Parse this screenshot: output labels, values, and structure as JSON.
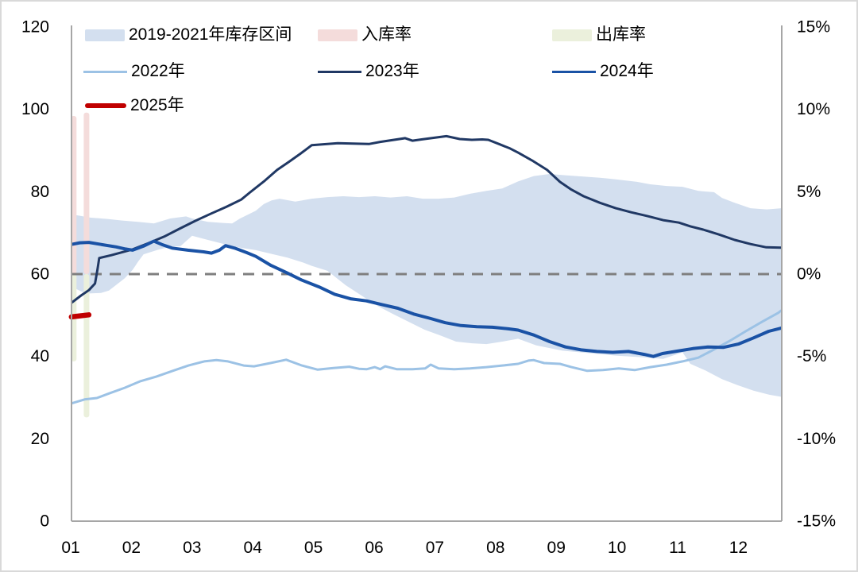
{
  "chart_data": {
    "type": "line",
    "title": "",
    "x_axis": {
      "labels": [
        "01",
        "02",
        "03",
        "04",
        "05",
        "06",
        "07",
        "08",
        "09",
        "10",
        "11",
        "12"
      ],
      "unit": "month"
    },
    "left_axis": {
      "ticks": [
        0,
        20,
        40,
        60,
        80,
        100,
        120
      ],
      "range": [
        0,
        120
      ]
    },
    "right_axis": {
      "tick_labels": [
        "15%",
        "10%",
        "5%",
        "0%",
        "-5%",
        "-10%",
        "-15%"
      ],
      "tick_values": [
        15,
        10,
        5,
        0,
        -5,
        -10,
        -15
      ],
      "range": [
        -15,
        15
      ]
    },
    "baseline": {
      "left_value": 60,
      "right_value_percent": 0,
      "style": "dashed",
      "color": "#7f7f7f"
    },
    "axis_line_color": "#a6a6a6",
    "series": [
      {
        "name": "2019-2021年库存区间",
        "type": "band",
        "axis": "left",
        "color": "#d3dfef",
        "upper": [
          [
            1.01,
            74.5
          ],
          [
            1.33,
            73.7
          ],
          [
            1.59,
            73.4
          ],
          [
            1.85,
            73.0
          ],
          [
            2.11,
            72.7
          ],
          [
            2.37,
            72.3
          ],
          [
            2.64,
            73.5
          ],
          [
            2.9,
            74.0
          ],
          [
            3.0,
            73.5
          ],
          [
            3.26,
            72.7
          ],
          [
            3.53,
            72.4
          ],
          [
            3.66,
            72.3
          ],
          [
            3.79,
            73.5
          ],
          [
            4.05,
            75.4
          ],
          [
            4.18,
            77.0
          ],
          [
            4.31,
            77.9
          ],
          [
            4.44,
            78.3
          ],
          [
            4.7,
            77.6
          ],
          [
            4.97,
            78.3
          ],
          [
            5.23,
            78.7
          ],
          [
            5.49,
            78.9
          ],
          [
            5.75,
            78.7
          ],
          [
            6.01,
            78.9
          ],
          [
            6.27,
            78.6
          ],
          [
            6.54,
            78.9
          ],
          [
            6.8,
            78.3
          ],
          [
            7.06,
            78.3
          ],
          [
            7.32,
            78.6
          ],
          [
            7.58,
            79.5
          ],
          [
            7.85,
            80.2
          ],
          [
            8.11,
            80.8
          ],
          [
            8.37,
            82.5
          ],
          [
            8.63,
            83.8
          ],
          [
            8.89,
            84.3
          ],
          [
            9.15,
            84.0
          ],
          [
            9.45,
            83.7
          ],
          [
            9.72,
            83.4
          ],
          [
            9.98,
            83.0
          ],
          [
            10.33,
            82.4
          ],
          [
            10.55,
            81.8
          ],
          [
            10.82,
            81.4
          ],
          [
            11.08,
            81.2
          ],
          [
            11.34,
            80.2
          ],
          [
            11.6,
            79.9
          ],
          [
            11.73,
            78.5
          ],
          [
            11.94,
            77.3
          ],
          [
            12.2,
            76.0
          ],
          [
            12.47,
            75.7
          ],
          [
            12.71,
            76.0
          ]
        ],
        "lower": [
          [
            1.01,
            57.0
          ],
          [
            1.17,
            55.8
          ],
          [
            1.3,
            55.3
          ],
          [
            1.5,
            55.4
          ],
          [
            1.63,
            56.0
          ],
          [
            1.76,
            57.5
          ],
          [
            1.89,
            59.0
          ],
          [
            2.02,
            61.0
          ],
          [
            2.11,
            63.0
          ],
          [
            2.2,
            64.8
          ],
          [
            2.33,
            65.4
          ],
          [
            2.46,
            66.0
          ],
          [
            2.64,
            66.6
          ],
          [
            2.81,
            66.8
          ],
          [
            3.0,
            69.3
          ],
          [
            3.26,
            68.3
          ],
          [
            3.53,
            67.3
          ],
          [
            3.79,
            66.4
          ],
          [
            4.05,
            65.8
          ],
          [
            4.31,
            64.9
          ],
          [
            4.57,
            64.0
          ],
          [
            4.83,
            62.8
          ],
          [
            4.97,
            62.0
          ],
          [
            5.23,
            60.8
          ],
          [
            5.53,
            57.3
          ],
          [
            5.79,
            54.8
          ],
          [
            6.05,
            52.3
          ],
          [
            6.31,
            50.3
          ],
          [
            6.57,
            48.4
          ],
          [
            6.83,
            46.5
          ],
          [
            7.09,
            45.1
          ],
          [
            7.35,
            43.6
          ],
          [
            7.61,
            43.2
          ],
          [
            7.85,
            43.0
          ],
          [
            8.11,
            43.6
          ],
          [
            8.37,
            44.3
          ],
          [
            8.67,
            42.7
          ],
          [
            9.1,
            41.4
          ],
          [
            9.54,
            40.8
          ],
          [
            9.98,
            40.2
          ],
          [
            10.42,
            39.8
          ],
          [
            10.76,
            39.4
          ],
          [
            11.08,
            41.0
          ],
          [
            11.21,
            38.2
          ],
          [
            11.47,
            36.5
          ],
          [
            11.73,
            34.5
          ],
          [
            11.99,
            33.0
          ],
          [
            12.25,
            31.7
          ],
          [
            12.51,
            30.7
          ],
          [
            12.71,
            30.2
          ]
        ]
      },
      {
        "name": "入库率",
        "type": "bar",
        "axis": "right",
        "color": "#f4dcdb",
        "points": [
          [
            1.05,
            9.6
          ],
          [
            1.26,
            9.8
          ]
        ]
      },
      {
        "name": "出库率",
        "type": "bar",
        "axis": "right",
        "color": "#ebf0dc",
        "points": [
          [
            1.05,
            -5.3
          ],
          [
            1.26,
            -8.7
          ]
        ]
      },
      {
        "name": "2022年",
        "type": "line",
        "axis": "left",
        "color": "#9cc2e5",
        "width": 3,
        "points": [
          [
            1.01,
            28.6
          ],
          [
            1.24,
            29.6
          ],
          [
            1.43,
            29.9
          ],
          [
            1.63,
            31.0
          ],
          [
            1.89,
            32.4
          ],
          [
            2.15,
            34.0
          ],
          [
            2.41,
            35.1
          ],
          [
            2.68,
            36.5
          ],
          [
            2.94,
            37.8
          ],
          [
            3.2,
            38.8
          ],
          [
            3.4,
            39.1
          ],
          [
            3.59,
            38.8
          ],
          [
            3.85,
            37.8
          ],
          [
            4.02,
            37.6
          ],
          [
            4.29,
            38.4
          ],
          [
            4.55,
            39.2
          ],
          [
            4.81,
            37.8
          ],
          [
            5.07,
            36.8
          ],
          [
            5.33,
            37.2
          ],
          [
            5.59,
            37.5
          ],
          [
            5.75,
            37.0
          ],
          [
            5.88,
            36.9
          ],
          [
            6.01,
            37.4
          ],
          [
            6.1,
            36.9
          ],
          [
            6.18,
            37.6
          ],
          [
            6.37,
            36.9
          ],
          [
            6.63,
            36.9
          ],
          [
            6.84,
            37.1
          ],
          [
            6.93,
            38.0
          ],
          [
            7.06,
            37.1
          ],
          [
            7.32,
            36.9
          ],
          [
            7.58,
            37.1
          ],
          [
            7.85,
            37.4
          ],
          [
            8.11,
            37.8
          ],
          [
            8.37,
            38.2
          ],
          [
            8.54,
            39.0
          ],
          [
            8.63,
            39.1
          ],
          [
            8.8,
            38.4
          ],
          [
            9.06,
            38.2
          ],
          [
            9.25,
            37.4
          ],
          [
            9.51,
            36.5
          ],
          [
            9.77,
            36.7
          ],
          [
            10.03,
            37.1
          ],
          [
            10.29,
            36.7
          ],
          [
            10.55,
            37.4
          ],
          [
            10.82,
            38.0
          ],
          [
            11.08,
            38.8
          ],
          [
            11.34,
            39.7
          ],
          [
            11.6,
            41.7
          ],
          [
            11.86,
            43.8
          ],
          [
            12.12,
            46.1
          ],
          [
            12.39,
            48.4
          ],
          [
            12.66,
            50.6
          ],
          [
            12.71,
            51.2
          ]
        ]
      },
      {
        "name": "2023年",
        "type": "line",
        "axis": "left",
        "color": "#203864",
        "width": 3,
        "points": [
          [
            1.01,
            53.0
          ],
          [
            1.17,
            54.8
          ],
          [
            1.3,
            56.1
          ],
          [
            1.4,
            57.7
          ],
          [
            1.44,
            61.0
          ],
          [
            1.47,
            63.9
          ],
          [
            1.67,
            64.6
          ],
          [
            2.02,
            66.0
          ],
          [
            2.28,
            67.5
          ],
          [
            2.54,
            69.1
          ],
          [
            2.79,
            71.0
          ],
          [
            3.05,
            72.9
          ],
          [
            3.3,
            74.6
          ],
          [
            3.56,
            76.3
          ],
          [
            3.81,
            78.1
          ],
          [
            3.95,
            79.8
          ],
          [
            4.2,
            82.7
          ],
          [
            4.4,
            85.3
          ],
          [
            4.6,
            87.3
          ],
          [
            4.8,
            89.4
          ],
          [
            4.97,
            91.3
          ],
          [
            5.4,
            91.8
          ],
          [
            5.92,
            91.6
          ],
          [
            6.1,
            92.1
          ],
          [
            6.51,
            93.0
          ],
          [
            6.63,
            92.4
          ],
          [
            6.78,
            92.7
          ],
          [
            7.19,
            93.5
          ],
          [
            7.41,
            92.8
          ],
          [
            7.61,
            92.6
          ],
          [
            7.78,
            92.7
          ],
          [
            7.88,
            92.6
          ],
          [
            8.07,
            91.5
          ],
          [
            8.24,
            90.5
          ],
          [
            8.37,
            89.5
          ],
          [
            8.6,
            87.6
          ],
          [
            8.85,
            85.3
          ],
          [
            9.06,
            82.4
          ],
          [
            9.25,
            80.5
          ],
          [
            9.45,
            78.9
          ],
          [
            9.72,
            77.3
          ],
          [
            9.98,
            76.0
          ],
          [
            10.24,
            75.0
          ],
          [
            10.5,
            74.1
          ],
          [
            10.76,
            73.1
          ],
          [
            11.02,
            72.5
          ],
          [
            11.21,
            71.6
          ],
          [
            11.42,
            70.8
          ],
          [
            11.68,
            69.6
          ],
          [
            11.94,
            68.3
          ],
          [
            12.2,
            67.3
          ],
          [
            12.46,
            66.5
          ],
          [
            12.71,
            66.4
          ]
        ]
      },
      {
        "name": "2024年",
        "type": "line",
        "axis": "left",
        "color": "#1a52a5",
        "width": 4,
        "points": [
          [
            1.01,
            67.2
          ],
          [
            1.15,
            67.6
          ],
          [
            1.3,
            67.7
          ],
          [
            1.5,
            67.2
          ],
          [
            1.75,
            66.6
          ],
          [
            1.9,
            66.1
          ],
          [
            2.02,
            65.8
          ],
          [
            2.2,
            66.8
          ],
          [
            2.37,
            68.0
          ],
          [
            2.5,
            67.2
          ],
          [
            2.67,
            66.3
          ],
          [
            2.93,
            65.8
          ],
          [
            3.19,
            65.4
          ],
          [
            3.32,
            65.1
          ],
          [
            3.45,
            65.8
          ],
          [
            3.55,
            66.9
          ],
          [
            3.7,
            66.3
          ],
          [
            3.9,
            65.2
          ],
          [
            4.05,
            64.3
          ],
          [
            4.3,
            62.1
          ],
          [
            4.55,
            60.4
          ],
          [
            4.8,
            58.6
          ],
          [
            5.09,
            56.9
          ],
          [
            5.35,
            55.1
          ],
          [
            5.61,
            54.0
          ],
          [
            5.87,
            53.5
          ],
          [
            6.13,
            52.6
          ],
          [
            6.39,
            51.7
          ],
          [
            6.65,
            50.3
          ],
          [
            6.91,
            49.3
          ],
          [
            7.17,
            48.2
          ],
          [
            7.43,
            47.5
          ],
          [
            7.69,
            47.2
          ],
          [
            7.95,
            47.1
          ],
          [
            8.21,
            46.7
          ],
          [
            8.37,
            46.4
          ],
          [
            8.63,
            45.2
          ],
          [
            8.89,
            43.6
          ],
          [
            9.15,
            42.3
          ],
          [
            9.41,
            41.6
          ],
          [
            9.67,
            41.2
          ],
          [
            9.93,
            41.0
          ],
          [
            10.19,
            41.2
          ],
          [
            10.45,
            40.5
          ],
          [
            10.6,
            40.0
          ],
          [
            10.75,
            40.7
          ],
          [
            11.0,
            41.3
          ],
          [
            11.25,
            41.9
          ],
          [
            11.5,
            42.3
          ],
          [
            11.75,
            42.2
          ],
          [
            12.0,
            43.0
          ],
          [
            12.25,
            44.5
          ],
          [
            12.5,
            46.1
          ],
          [
            12.71,
            46.9
          ]
        ]
      },
      {
        "name": "2025年",
        "type": "line",
        "axis": "left",
        "color": "#c00000",
        "width": 6.5,
        "points": [
          [
            1.01,
            49.6
          ],
          [
            1.3,
            50.1
          ]
        ]
      }
    ]
  }
}
